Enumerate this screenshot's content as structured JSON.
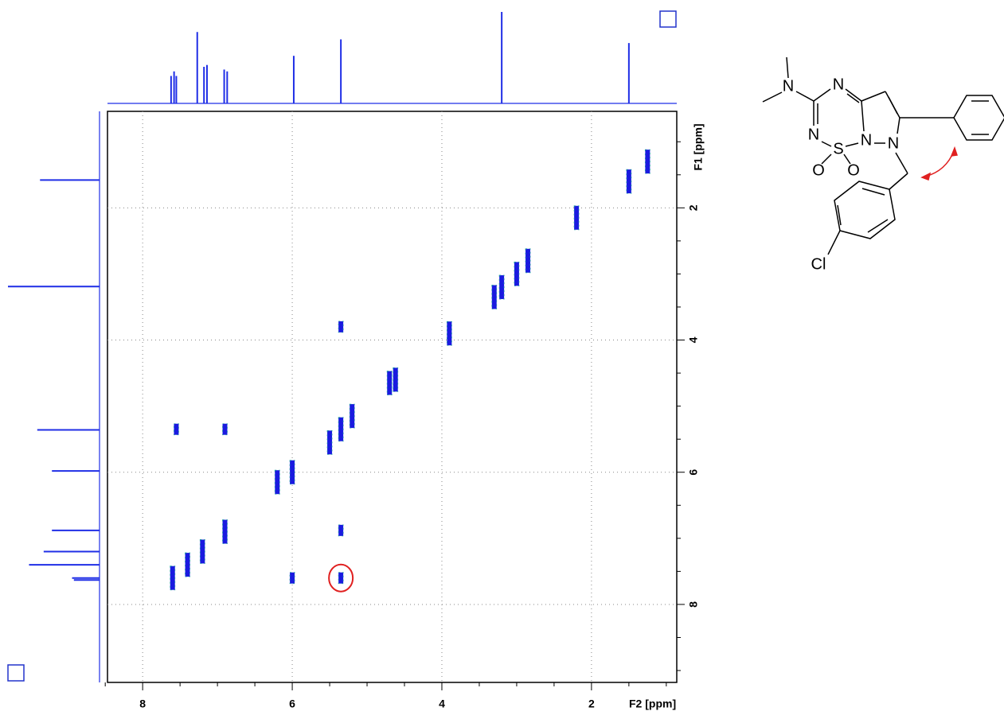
{
  "chart_data": {
    "type": "nmr2d",
    "xlabel": "F2 [ppm]",
    "ylabel": "F1 [ppm]",
    "xlim": [
      8.47,
      0.86
    ],
    "ylim": [
      0.54,
      9.18
    ],
    "xticks": [
      8,
      6,
      4,
      2
    ],
    "yticks": [
      2,
      4,
      6,
      8
    ],
    "xminorticks": [
      8.5,
      7.5,
      7,
      6.5,
      5.5,
      5,
      4.5,
      3.5,
      3,
      2.5,
      1.5,
      1
    ],
    "yminorticks": [
      1,
      1.5,
      2.5,
      3,
      3.5,
      4.5,
      5,
      5.5,
      6.5,
      7,
      7.5,
      8.5,
      9
    ],
    "grid": true,
    "color": "#1f2ee6",
    "series": [
      {
        "name": "diagonal",
        "color": "#1a1ae0",
        "x": [
          7.6,
          7.4,
          7.2,
          6.9,
          6.2,
          6.0,
          5.5,
          5.35,
          5.2,
          4.7,
          4.62,
          3.9,
          3.3,
          3.2,
          3.0,
          2.85,
          2.2,
          1.5,
          1.25
        ],
        "y": [
          7.6,
          7.4,
          7.2,
          6.9,
          6.15,
          6.0,
          5.55,
          5.35,
          5.15,
          4.65,
          4.6,
          3.9,
          3.35,
          3.2,
          3.0,
          2.8,
          2.15,
          1.6,
          1.3
        ]
      },
      {
        "name": "cross",
        "color": "#1a1ae0",
        "x": [
          7.55,
          6.9,
          5.35,
          6.0,
          5.35,
          5.35
        ],
        "y": [
          5.35,
          5.35,
          6.88,
          7.6,
          7.6,
          3.8
        ]
      }
    ],
    "highlight": {
      "x": 5.35,
      "y": 7.6
    },
    "f2_projection": {
      "ppm": [
        7.62,
        7.58,
        7.55,
        7.27,
        7.18,
        7.14,
        6.91,
        6.87,
        5.98,
        5.35,
        3.2,
        1.5
      ],
      "heights": [
        30,
        35,
        30,
        78,
        40,
        42,
        37,
        35,
        52,
        70,
        100,
        66
      ]
    },
    "f1_projection": {
      "ppm": [
        1.58,
        3.19,
        5.36,
        5.98,
        6.88,
        7.2,
        7.4,
        7.6,
        7.63
      ],
      "heights": [
        65,
        100,
        68,
        52,
        52,
        61,
        77,
        30,
        28
      ]
    }
  },
  "structure_labels": {
    "n_amine": "N",
    "n_top": "N",
    "n_left": "N",
    "s": "S",
    "n_bridge": "N",
    "n_pyrazole": "N",
    "o_left": "O",
    "o_right": "O",
    "cl": "Cl"
  }
}
